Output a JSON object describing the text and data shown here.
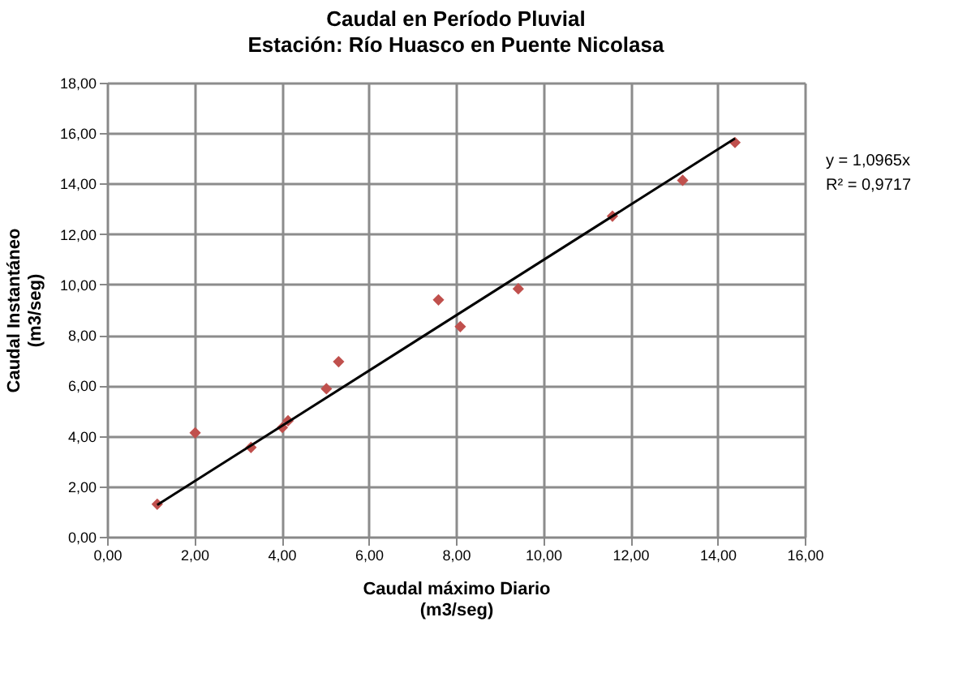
{
  "chart_data": {
    "type": "scatter",
    "title": "Caudal en Período Pluvial",
    "subtitle": "Estación: Río Huasco en Puente Nicolasa",
    "xlabel": "Caudal máximo Diario\n(m3/seg)",
    "ylabel": "Caudal Instantáneo\n(m3/seg)",
    "xlim": [
      0,
      16
    ],
    "xticks": [
      {
        "value": 0,
        "label": "0,00"
      },
      {
        "value": 2,
        "label": "2,00"
      },
      {
        "value": 4,
        "label": "4,00"
      },
      {
        "value": 6,
        "label": "6,00"
      },
      {
        "value": 8,
        "label": "8,00"
      },
      {
        "value": 10,
        "label": "10,00"
      },
      {
        "value": 12,
        "label": "12,00"
      },
      {
        "value": 14,
        "label": "14,00"
      },
      {
        "value": 16,
        "label": "16,00"
      }
    ],
    "ylim": [
      0,
      18
    ],
    "yticks": [
      {
        "value": 0,
        "label": "0,00"
      },
      {
        "value": 2,
        "label": "2,00"
      },
      {
        "value": 4,
        "label": "4,00"
      },
      {
        "value": 6,
        "label": "6,00"
      },
      {
        "value": 8,
        "label": "8,00"
      },
      {
        "value": 10,
        "label": "10,00"
      },
      {
        "value": 12,
        "label": "12,00"
      },
      {
        "value": 14,
        "label": "14,00"
      },
      {
        "value": 16,
        "label": "16,00"
      },
      {
        "value": 18,
        "label": "18,00"
      }
    ],
    "grid": true,
    "series": [
      {
        "type": "scatter",
        "marker": "diamond",
        "color": "#c0504d",
        "x": [
          1.15,
          2.02,
          3.3,
          4.02,
          4.15,
          5.03,
          5.31,
          7.6,
          8.1,
          9.43,
          11.59,
          13.2,
          14.4
        ],
        "values": [
          1.29,
          4.12,
          3.54,
          4.33,
          4.6,
          5.87,
          6.94,
          9.39,
          8.33,
          9.83,
          12.71,
          14.13,
          15.63
        ]
      },
      {
        "type": "line",
        "marker": "none",
        "color": "#000000",
        "x": [
          1.15,
          14.4
        ],
        "values": [
          1.26,
          15.79
        ]
      }
    ],
    "annotations": [
      "y = 1,0965x",
      "R² = 0,9717"
    ]
  }
}
